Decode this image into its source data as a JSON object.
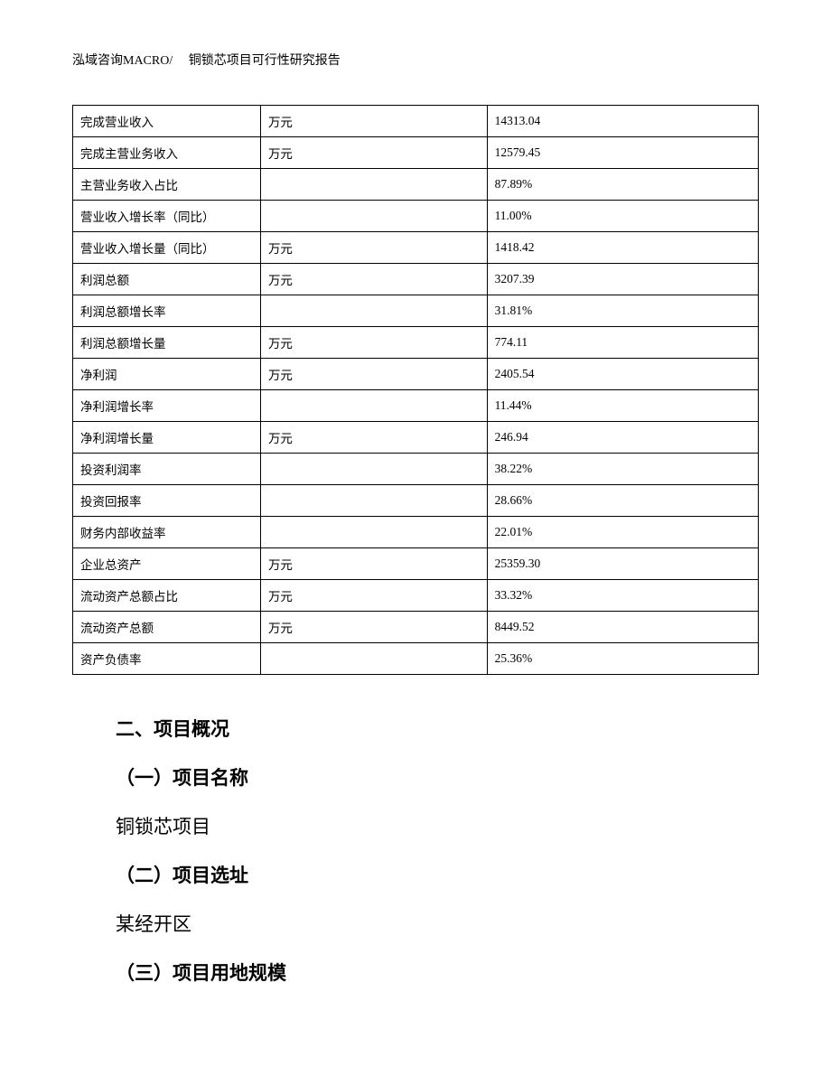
{
  "header": "泓域咨询MACRO/　 铜锁芯项目可行性研究报告",
  "table": {
    "rows": [
      {
        "label": "完成营业收入",
        "unit": "万元",
        "value": "14313.04"
      },
      {
        "label": "完成主营业务收入",
        "unit": "万元",
        "value": "12579.45"
      },
      {
        "label": "主营业务收入占比",
        "unit": "",
        "value": "87.89%"
      },
      {
        "label": "营业收入增长率（同比）",
        "unit": "",
        "value": "11.00%"
      },
      {
        "label": "营业收入增长量（同比）",
        "unit": "万元",
        "value": "1418.42"
      },
      {
        "label": "利润总额",
        "unit": "万元",
        "value": "3207.39"
      },
      {
        "label": "利润总额增长率",
        "unit": "",
        "value": "31.81%"
      },
      {
        "label": "利润总额增长量",
        "unit": "万元",
        "value": "774.11"
      },
      {
        "label": "净利润",
        "unit": "万元",
        "value": "2405.54"
      },
      {
        "label": "净利润增长率",
        "unit": "",
        "value": "11.44%"
      },
      {
        "label": "净利润增长量",
        "unit": "万元",
        "value": "246.94"
      },
      {
        "label": "投资利润率",
        "unit": "",
        "value": "38.22%"
      },
      {
        "label": "投资回报率",
        "unit": "",
        "value": "28.66%"
      },
      {
        "label": "财务内部收益率",
        "unit": "",
        "value": "22.01%"
      },
      {
        "label": "企业总资产",
        "unit": "万元",
        "value": "25359.30"
      },
      {
        "label": "流动资产总额占比",
        "unit": "万元",
        "value": "33.32%"
      },
      {
        "label": "流动资产总额",
        "unit": "万元",
        "value": "8449.52"
      },
      {
        "label": "资产负债率",
        "unit": "",
        "value": "25.36%"
      }
    ]
  },
  "sections": {
    "s2_title": "二、项目概况",
    "s2_1_heading": "（一）项目名称",
    "s2_1_body": "铜锁芯项目",
    "s2_2_heading": "（二）项目选址",
    "s2_2_body": "某经开区",
    "s2_3_heading": "（三）项目用地规模"
  }
}
